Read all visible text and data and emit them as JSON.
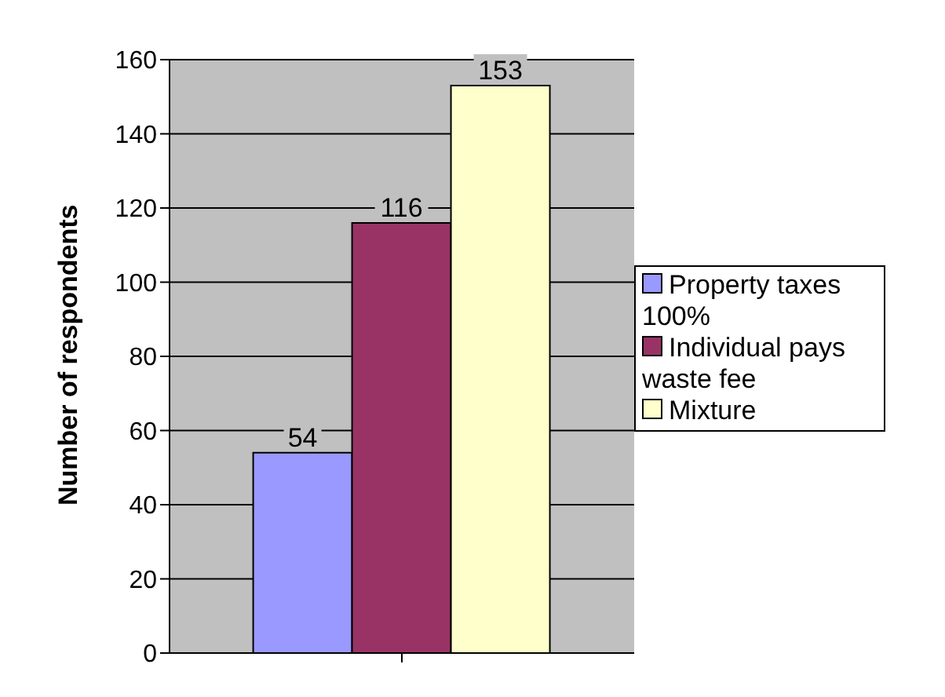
{
  "chart_data": {
    "type": "bar",
    "ylabel": "Number of respondents",
    "categories": [
      null
    ],
    "series": [
      {
        "name": "Property taxes 100%",
        "color": "#9999ff",
        "values": [
          54
        ]
      },
      {
        "name": "Individual pays waste fee",
        "color": "#993366",
        "values": [
          116
        ]
      },
      {
        "name": "Mixture",
        "color": "#ffffcc",
        "values": [
          153
        ]
      }
    ],
    "ylim": [
      0,
      160
    ],
    "yticks": [
      0,
      20,
      40,
      60,
      80,
      100,
      120,
      140,
      160
    ],
    "grid": "y",
    "legend": "right",
    "data_labels": true
  }
}
